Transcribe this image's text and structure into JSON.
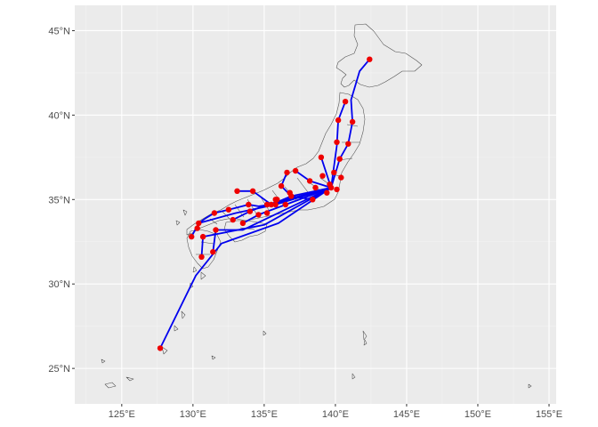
{
  "chart_data": {
    "type": "map",
    "title": "",
    "xlabel": "",
    "ylabel": "",
    "xlim": [
      121.7,
      155.5
    ],
    "ylim": [
      22.9,
      46.5
    ],
    "x_ticks": [
      {
        "value": 125,
        "label": "125°E"
      },
      {
        "value": 130,
        "label": "130°E"
      },
      {
        "value": 135,
        "label": "135°E"
      },
      {
        "value": 140,
        "label": "140°E"
      },
      {
        "value": 145,
        "label": "145°E"
      },
      {
        "value": 150,
        "label": "150°E"
      },
      {
        "value": 155,
        "label": "155°E"
      }
    ],
    "y_ticks": [
      {
        "value": 25,
        "label": "25°N"
      },
      {
        "value": 30,
        "label": "30°N"
      },
      {
        "value": 35,
        "label": "35°N"
      },
      {
        "value": 40,
        "label": "40°N"
      },
      {
        "value": 45,
        "label": "45°N"
      }
    ],
    "background_color": "#ebebeb",
    "grid": true,
    "land_outline_color": "#4d4d4d",
    "route_color": "#0000ee",
    "point_color": "#ee0000",
    "hub": {
      "lon": 139.7,
      "lat": 35.7
    },
    "points": [
      {
        "lon": 142.4,
        "lat": 43.3
      },
      {
        "lon": 140.7,
        "lat": 40.8
      },
      {
        "lon": 141.2,
        "lat": 39.6
      },
      {
        "lon": 140.2,
        "lat": 39.7
      },
      {
        "lon": 140.9,
        "lat": 38.3
      },
      {
        "lon": 140.1,
        "lat": 38.4
      },
      {
        "lon": 140.3,
        "lat": 37.4
      },
      {
        "lon": 139.0,
        "lat": 37.5
      },
      {
        "lon": 139.9,
        "lat": 36.6
      },
      {
        "lon": 140.4,
        "lat": 36.3
      },
      {
        "lon": 139.1,
        "lat": 36.4
      },
      {
        "lon": 139.6,
        "lat": 35.9
      },
      {
        "lon": 140.1,
        "lat": 35.6
      },
      {
        "lon": 139.4,
        "lat": 35.4
      },
      {
        "lon": 138.6,
        "lat": 35.7
      },
      {
        "lon": 138.2,
        "lat": 36.1
      },
      {
        "lon": 137.2,
        "lat": 36.7
      },
      {
        "lon": 136.6,
        "lat": 36.6
      },
      {
        "lon": 136.2,
        "lat": 35.8
      },
      {
        "lon": 138.4,
        "lat": 35.0
      },
      {
        "lon": 136.9,
        "lat": 35.2
      },
      {
        "lon": 136.8,
        "lat": 35.4
      },
      {
        "lon": 136.5,
        "lat": 34.7
      },
      {
        "lon": 135.9,
        "lat": 35.0
      },
      {
        "lon": 135.8,
        "lat": 35.0
      },
      {
        "lon": 135.5,
        "lat": 34.7
      },
      {
        "lon": 135.2,
        "lat": 34.7
      },
      {
        "lon": 135.8,
        "lat": 34.7
      },
      {
        "lon": 135.2,
        "lat": 34.2
      },
      {
        "lon": 134.2,
        "lat": 35.5
      },
      {
        "lon": 133.1,
        "lat": 35.5
      },
      {
        "lon": 133.9,
        "lat": 34.7
      },
      {
        "lon": 132.5,
        "lat": 34.4
      },
      {
        "lon": 131.5,
        "lat": 34.2
      },
      {
        "lon": 134.6,
        "lat": 34.1
      },
      {
        "lon": 134.0,
        "lat": 34.3
      },
      {
        "lon": 132.8,
        "lat": 33.8
      },
      {
        "lon": 133.5,
        "lat": 33.6
      },
      {
        "lon": 130.4,
        "lat": 33.6
      },
      {
        "lon": 130.3,
        "lat": 33.3
      },
      {
        "lon": 129.9,
        "lat": 32.8
      },
      {
        "lon": 130.7,
        "lat": 32.8
      },
      {
        "lon": 131.6,
        "lat": 33.2
      },
      {
        "lon": 131.4,
        "lat": 31.9
      },
      {
        "lon": 130.6,
        "lat": 31.6
      },
      {
        "lon": 127.7,
        "lat": 26.2
      },
      {
        "lon": 139.7,
        "lat": 35.7
      }
    ],
    "routes": [
      [
        [
          139.7,
          35.7
        ],
        [
          140.3,
          37.4
        ],
        [
          140.9,
          38.3
        ],
        [
          141.2,
          39.6
        ],
        [
          141.1,
          40.9
        ],
        [
          141.7,
          42.6
        ],
        [
          142.4,
          43.3
        ]
      ],
      [
        [
          139.7,
          35.7
        ],
        [
          140.1,
          38.2
        ],
        [
          140.2,
          39.7
        ],
        [
          140.7,
          40.8
        ]
      ],
      [
        [
          139.7,
          35.7
        ],
        [
          139.0,
          37.5
        ]
      ],
      [
        [
          139.7,
          35.7
        ],
        [
          138.2,
          36.1
        ],
        [
          137.2,
          36.7
        ]
      ],
      [
        [
          139.7,
          35.7
        ],
        [
          138.4,
          35.0
        ],
        [
          136.9,
          35.2
        ],
        [
          136.2,
          35.8
        ],
        [
          136.6,
          36.6
        ]
      ],
      [
        [
          139.7,
          35.7
        ],
        [
          136.9,
          35.2
        ],
        [
          135.5,
          34.7
        ],
        [
          134.6,
          34.6
        ],
        [
          133.9,
          34.7
        ],
        [
          132.5,
          34.4
        ],
        [
          131.5,
          34.2
        ],
        [
          130.9,
          33.9
        ],
        [
          130.4,
          33.6
        ]
      ],
      [
        [
          139.7,
          35.7
        ],
        [
          135.5,
          34.7
        ],
        [
          134.2,
          35.5
        ],
        [
          133.1,
          35.5
        ]
      ],
      [
        [
          139.7,
          35.7
        ],
        [
          135.2,
          34.7
        ],
        [
          134.0,
          34.3
        ],
        [
          132.8,
          33.8
        ]
      ],
      [
        [
          139.7,
          35.7
        ],
        [
          134.6,
          34.1
        ],
        [
          133.5,
          33.6
        ]
      ],
      [
        [
          139.7,
          35.7
        ],
        [
          135.8,
          34.7
        ],
        [
          133.0,
          34.2
        ],
        [
          130.4,
          33.6
        ],
        [
          129.9,
          32.8
        ]
      ],
      [
        [
          139.7,
          35.7
        ],
        [
          133.5,
          33.2
        ],
        [
          131.6,
          33.2
        ],
        [
          131.4,
          31.9
        ]
      ],
      [
        [
          139.7,
          35.7
        ],
        [
          135.0,
          33.5
        ],
        [
          130.7,
          32.8
        ],
        [
          130.6,
          31.6
        ]
      ],
      [
        [
          139.7,
          35.7
        ],
        [
          136.0,
          33.6
        ],
        [
          132.0,
          32.4
        ],
        [
          130.2,
          30.5
        ],
        [
          127.7,
          26.2
        ]
      ]
    ]
  }
}
